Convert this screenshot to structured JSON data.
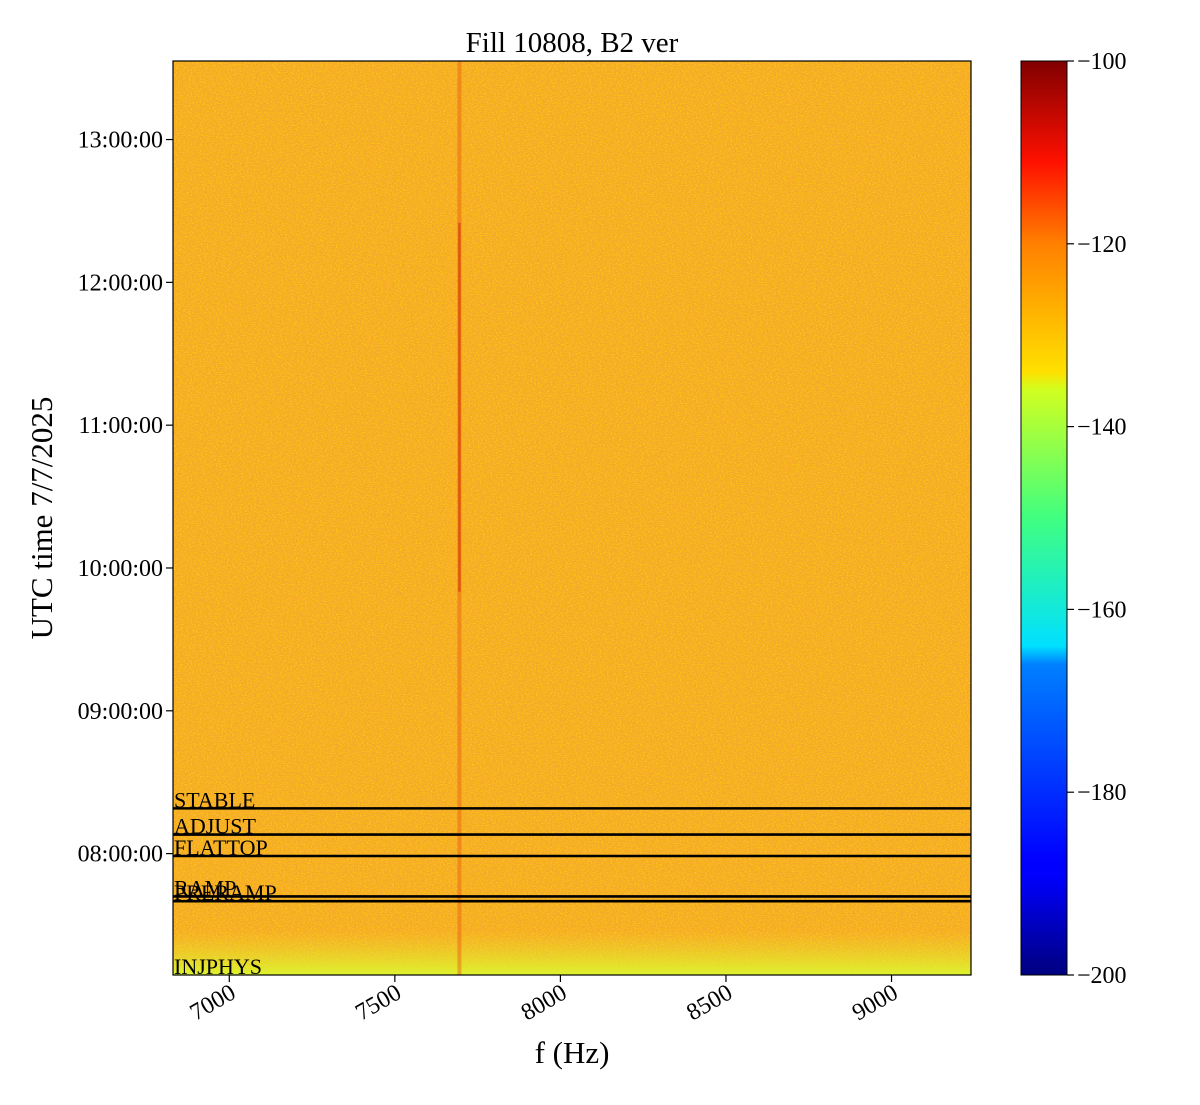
{
  "chart_data": {
    "type": "heatmap",
    "title": "Fill 10808, B2 ver",
    "xlabel": "f (Hz)",
    "ylabel": "UTC time 7/7/2025",
    "xlim": [
      6830,
      9240
    ],
    "x_ticks": [
      7000,
      7500,
      8000,
      8500,
      9000
    ],
    "x_tick_labels": [
      "7000",
      "7500",
      "8000",
      "8500",
      "9000"
    ],
    "ylim": [
      "07:09:00",
      "13:33:00"
    ],
    "y_ticks": [
      "08:00:00",
      "09:00:00",
      "10:00:00",
      "11:00:00",
      "12:00:00",
      "13:00:00"
    ],
    "y_tick_labels": [
      "08:00:00",
      "09:00:00",
      "10:00:00",
      "11:00:00",
      "12:00:00",
      "13:00:00"
    ],
    "colorbar": {
      "colormap": "jet",
      "range": [
        -200,
        -100
      ],
      "ticks": [
        -200,
        -180,
        -160,
        -140,
        -120,
        -100
      ],
      "tick_labels": [
        "−200",
        "−180",
        "−160",
        "−140",
        "−120",
        "−100"
      ]
    },
    "background_level": -125,
    "features": [
      {
        "kind": "vertical line",
        "frequency_hz": 7695,
        "level": -118
      }
    ],
    "beam_modes": [
      {
        "label": "STABLE",
        "time": "08:19:00"
      },
      {
        "label": "ADJUST",
        "time": "08:08:00"
      },
      {
        "label": "FLATTOP",
        "time": "07:59:00"
      },
      {
        "label": "RAMP",
        "time": "07:42:00"
      },
      {
        "label": "PRERAMP",
        "time": "07:40:00"
      },
      {
        "label": "INJPHYS",
        "time": "07:09:00"
      }
    ]
  }
}
